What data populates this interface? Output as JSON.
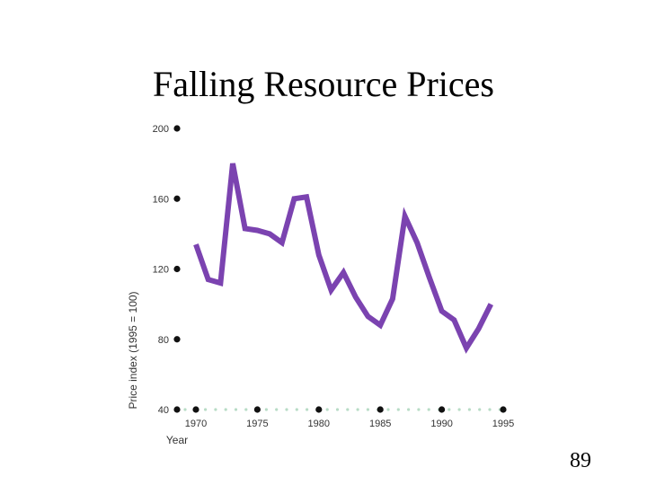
{
  "slide": {
    "title": "Falling Resource Prices",
    "page_number": "89"
  },
  "chart_data": {
    "type": "line",
    "title": "Falling Resource Prices",
    "xlabel": "Year",
    "ylabel": "Price index (1995 = 100)",
    "xlim": [
      1970,
      1995
    ],
    "ylim": [
      40,
      200
    ],
    "x_ticks": [
      1970,
      1975,
      1980,
      1985,
      1990,
      1995
    ],
    "y_ticks": [
      40,
      80,
      120,
      160,
      200
    ],
    "series": [
      {
        "color": "#7b43b0",
        "x": [
          1970,
          1971,
          1972,
          1973,
          1974,
          1975,
          1976,
          1977,
          1978,
          1979,
          1980,
          1981,
          1982,
          1983,
          1984,
          1985,
          1986,
          1987,
          1988,
          1989,
          1990,
          1991,
          1992,
          1993,
          1994
        ],
        "values": [
          134,
          114,
          112,
          180,
          143,
          142,
          140,
          135,
          160,
          161,
          128,
          108,
          118,
          104,
          93,
          88,
          103,
          150,
          135,
          115,
          96,
          91,
          75,
          86,
          100
        ]
      }
    ],
    "grid": false,
    "legend": "none",
    "axis_marker_color": "#111111",
    "baseline_dot_color": "#b8dcc6"
  }
}
